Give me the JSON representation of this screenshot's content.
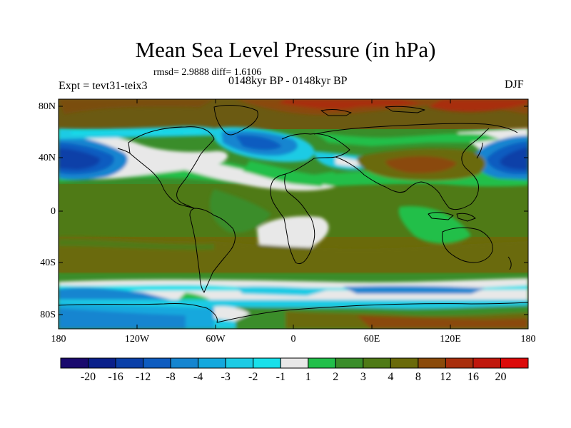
{
  "title": "Mean Sea Level Pressure (in hPa)",
  "stats": "rmsd= 2.9888 diff= 1.6106",
  "subtitle": "0148kyr BP - 0148kyr BP",
  "experiment": "Expt = tevt31-teix3",
  "season": "DJF",
  "axes": {
    "y_labels": [
      "80N",
      "40N",
      "0",
      "40S",
      "80S"
    ],
    "x_labels": [
      "180",
      "120W",
      "60W",
      "0",
      "60E",
      "120E",
      "180"
    ]
  },
  "colorbar": {
    "labels": [
      "-20",
      "-16",
      "-12",
      "-8",
      "-4",
      "-3",
      "-2",
      "-1",
      "1",
      "2",
      "3",
      "4",
      "8",
      "12",
      "16",
      "20"
    ],
    "colors": [
      "#1a0a6e",
      "#0a1f8a",
      "#0a3fa8",
      "#0e5cc0",
      "#1585d0",
      "#13a8dd",
      "#1ccbe4",
      "#19e0ea",
      "#e8e8e8",
      "#22bf4a",
      "#3a8d2a",
      "#4f7a16",
      "#6a6a0a",
      "#8a4a0a",
      "#a82e0c",
      "#c0170c",
      "#dc0a0a"
    ]
  }
}
